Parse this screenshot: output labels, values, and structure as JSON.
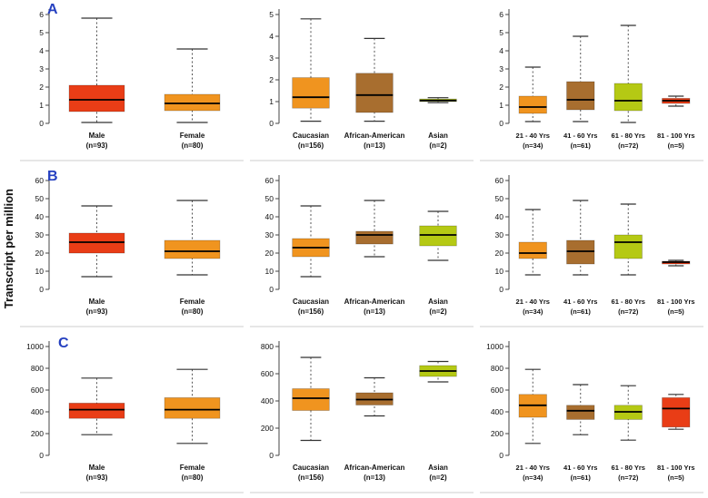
{
  "figure": {
    "y_axis_label": "Transcript per million",
    "row_labels": [
      "A",
      "B",
      "C"
    ],
    "row_label_color": "#2540c0",
    "palette": {
      "red": "#e93d16",
      "orange": "#f0941f",
      "brown": "#a86e2f",
      "green": "#b5c914"
    }
  },
  "chart_data": [
    {
      "id": "A-gender",
      "type": "box",
      "row": "A",
      "ylim": [
        0,
        6
      ],
      "yticks": [
        0,
        1,
        2,
        3,
        4,
        5,
        6
      ],
      "groups": [
        {
          "label": "Male",
          "n_label": "(n=93)",
          "color": "#e93d16",
          "whisker_low": 0.05,
          "q1": 0.65,
          "median": 1.3,
          "q3": 2.1,
          "whisker_high": 5.8
        },
        {
          "label": "Female",
          "n_label": "(n=80)",
          "color": "#f0941f",
          "whisker_low": 0.05,
          "q1": 0.7,
          "median": 1.1,
          "q3": 1.6,
          "whisker_high": 4.1
        }
      ]
    },
    {
      "id": "A-race",
      "type": "box",
      "row": "A",
      "ylim": [
        0,
        5
      ],
      "yticks": [
        0,
        1,
        2,
        3,
        4,
        5
      ],
      "groups": [
        {
          "label": "Caucasian",
          "n_label": "(n=156)",
          "color": "#f0941f",
          "whisker_low": 0.1,
          "q1": 0.7,
          "median": 1.2,
          "q3": 2.1,
          "whisker_high": 4.8
        },
        {
          "label": "African-American",
          "n_label": "(n=13)",
          "color": "#a86e2f",
          "whisker_low": 0.1,
          "q1": 0.5,
          "median": 1.3,
          "q3": 2.3,
          "whisker_high": 3.9
        },
        {
          "label": "Asian",
          "n_label": "(n=2)",
          "color": "#b5c914",
          "whisker_low": 0.95,
          "q1": 1.0,
          "median": 1.05,
          "q3": 1.12,
          "whisker_high": 1.18
        }
      ]
    },
    {
      "id": "A-age",
      "type": "box",
      "row": "A",
      "ylim": [
        0,
        6
      ],
      "yticks": [
        0,
        1,
        2,
        3,
        4,
        5,
        6
      ],
      "groups": [
        {
          "label": "21 - 40 Yrs",
          "n_label": "(n=34)",
          "color": "#f0941f",
          "whisker_low": 0.1,
          "q1": 0.55,
          "median": 0.9,
          "q3": 1.5,
          "whisker_high": 3.1
        },
        {
          "label": "41 - 60 Yrs",
          "n_label": "(n=61)",
          "color": "#a86e2f",
          "whisker_low": 0.1,
          "q1": 0.75,
          "median": 1.3,
          "q3": 2.3,
          "whisker_high": 4.8
        },
        {
          "label": "61 - 80 Yrs",
          "n_label": "(n=72)",
          "color": "#b5c914",
          "whisker_low": 0.05,
          "q1": 0.7,
          "median": 1.25,
          "q3": 2.2,
          "whisker_high": 5.4
        },
        {
          "label": "81 - 100 Yrs",
          "n_label": "(n=5)",
          "color": "#e93d16",
          "whisker_low": 0.95,
          "q1": 1.1,
          "median": 1.25,
          "q3": 1.38,
          "whisker_high": 1.5
        }
      ]
    },
    {
      "id": "B-gender",
      "type": "box",
      "row": "B",
      "ylim": [
        0,
        60
      ],
      "yticks": [
        0,
        10,
        20,
        30,
        40,
        50,
        60
      ],
      "groups": [
        {
          "label": "Male",
          "n_label": "(n=93)",
          "color": "#e93d16",
          "whisker_low": 7,
          "q1": 20,
          "median": 26,
          "q3": 31,
          "whisker_high": 46
        },
        {
          "label": "Female",
          "n_label": "(n=80)",
          "color": "#f0941f",
          "whisker_low": 8,
          "q1": 17,
          "median": 21,
          "q3": 27,
          "whisker_high": 49
        }
      ]
    },
    {
      "id": "B-race",
      "type": "box",
      "row": "B",
      "ylim": [
        0,
        60
      ],
      "yticks": [
        0,
        10,
        20,
        30,
        40,
        50,
        60
      ],
      "groups": [
        {
          "label": "Caucasian",
          "n_label": "(n=156)",
          "color": "#f0941f",
          "whisker_low": 7,
          "q1": 18,
          "median": 23,
          "q3": 28,
          "whisker_high": 46
        },
        {
          "label": "African-American",
          "n_label": "(n=13)",
          "color": "#a86e2f",
          "whisker_low": 18,
          "q1": 25,
          "median": 30,
          "q3": 32,
          "whisker_high": 49
        },
        {
          "label": "Asian",
          "n_label": "(n=2)",
          "color": "#b5c914",
          "whisker_low": 16,
          "q1": 24,
          "median": 30,
          "q3": 35,
          "whisker_high": 43
        }
      ]
    },
    {
      "id": "B-age",
      "type": "box",
      "row": "B",
      "ylim": [
        0,
        60
      ],
      "yticks": [
        0,
        10,
        20,
        30,
        40,
        50,
        60
      ],
      "groups": [
        {
          "label": "21 - 40 Yrs",
          "n_label": "(n=34)",
          "color": "#f0941f",
          "whisker_low": 8,
          "q1": 17,
          "median": 20,
          "q3": 26,
          "whisker_high": 44
        },
        {
          "label": "41 - 60 Yrs",
          "n_label": "(n=61)",
          "color": "#a86e2f",
          "whisker_low": 8,
          "q1": 14,
          "median": 21,
          "q3": 27,
          "whisker_high": 49
        },
        {
          "label": "61 - 80 Yrs",
          "n_label": "(n=72)",
          "color": "#b5c914",
          "whisker_low": 8,
          "q1": 17,
          "median": 26,
          "q3": 30,
          "whisker_high": 47
        },
        {
          "label": "81 - 100 Yrs",
          "n_label": "(n=5)",
          "color": "#e93d16",
          "whisker_low": 13,
          "q1": 14,
          "median": 15,
          "q3": 15.5,
          "whisker_high": 16
        }
      ]
    },
    {
      "id": "C-gender",
      "type": "box",
      "row": "C",
      "ylim": [
        0,
        1000
      ],
      "yticks": [
        0,
        200,
        400,
        600,
        800,
        1000
      ],
      "groups": [
        {
          "label": "Male",
          "n_label": "(n=93)",
          "color": "#e93d16",
          "whisker_low": 190,
          "q1": 340,
          "median": 420,
          "q3": 480,
          "whisker_high": 710
        },
        {
          "label": "Female",
          "n_label": "(n=80)",
          "color": "#f0941f",
          "whisker_low": 110,
          "q1": 340,
          "median": 420,
          "q3": 530,
          "whisker_high": 790
        }
      ]
    },
    {
      "id": "C-race",
      "type": "box",
      "row": "C",
      "ylim": [
        0,
        800
      ],
      "yticks": [
        0,
        200,
        400,
        600,
        800
      ],
      "groups": [
        {
          "label": "Caucasian",
          "n_label": "(n=156)",
          "color": "#f0941f",
          "whisker_low": 110,
          "q1": 330,
          "median": 420,
          "q3": 490,
          "whisker_high": 720
        },
        {
          "label": "African-American",
          "n_label": "(n=13)",
          "color": "#a86e2f",
          "whisker_low": 290,
          "q1": 370,
          "median": 410,
          "q3": 460,
          "whisker_high": 570
        },
        {
          "label": "Asian",
          "n_label": "(n=2)",
          "color": "#b5c914",
          "whisker_low": 540,
          "q1": 580,
          "median": 620,
          "q3": 660,
          "whisker_high": 690
        }
      ]
    },
    {
      "id": "C-age",
      "type": "box",
      "row": "C",
      "ylim": [
        0,
        1000
      ],
      "yticks": [
        0,
        200,
        400,
        600,
        800,
        1000
      ],
      "groups": [
        {
          "label": "21 - 40 Yrs",
          "n_label": "(n=34)",
          "color": "#f0941f",
          "whisker_low": 110,
          "q1": 350,
          "median": 460,
          "q3": 560,
          "whisker_high": 790
        },
        {
          "label": "41 - 60 Yrs",
          "n_label": "(n=61)",
          "color": "#a86e2f",
          "whisker_low": 190,
          "q1": 330,
          "median": 410,
          "q3": 460,
          "whisker_high": 650
        },
        {
          "label": "61 - 80 Yrs",
          "n_label": "(n=72)",
          "color": "#b5c914",
          "whisker_low": 140,
          "q1": 330,
          "median": 400,
          "q3": 460,
          "whisker_high": 640
        },
        {
          "label": "81 - 100 Yrs",
          "n_label": "(n=5)",
          "color": "#e93d16",
          "whisker_low": 240,
          "q1": 260,
          "median": 430,
          "q3": 530,
          "whisker_high": 560
        }
      ]
    }
  ]
}
